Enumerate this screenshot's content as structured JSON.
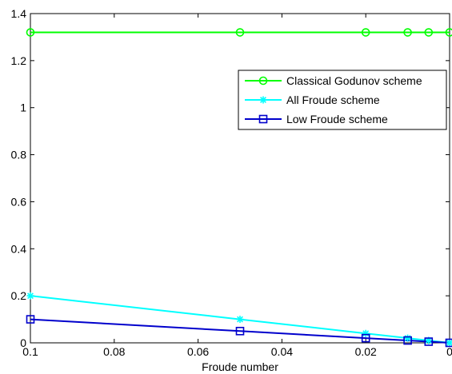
{
  "chart_data": {
    "type": "line",
    "title": "",
    "xlabel": "Froude number",
    "ylabel": "",
    "x_reversed": true,
    "xlim": [
      0,
      0.1
    ],
    "ylim": [
      0,
      1.4
    ],
    "x_ticks": [
      0.1,
      0.08,
      0.06,
      0.04,
      0.02,
      0
    ],
    "x_tick_labels": [
      "0.1",
      "0.08",
      "0.06",
      "0.04",
      "0.02",
      "0"
    ],
    "y_ticks": [
      0,
      0.2,
      0.4,
      0.6,
      0.8,
      1,
      1.2,
      1.4
    ],
    "y_tick_labels": [
      "0",
      "0.2",
      "0.4",
      "0.6",
      "0.8",
      "1",
      "1.2",
      "1.4"
    ],
    "grid": false,
    "legend_position": "top-right",
    "series": [
      {
        "name": "Classical Godunov scheme",
        "color": "#00ff00",
        "marker": "circle",
        "x": [
          0.1,
          0.05,
          0.02,
          0.01,
          0.005,
          0
        ],
        "y": [
          1.32,
          1.32,
          1.32,
          1.32,
          1.32,
          1.32
        ]
      },
      {
        "name": "All Froude scheme",
        "color": "#00ffff",
        "marker": "star",
        "x": [
          0.1,
          0.05,
          0.02,
          0.01,
          0.005,
          0
        ],
        "y": [
          0.2,
          0.1,
          0.04,
          0.02,
          0.01,
          0.0
        ]
      },
      {
        "name": "Low Froude scheme",
        "color": "#0000cc",
        "marker": "square",
        "x": [
          0.1,
          0.05,
          0.02,
          0.01,
          0.005,
          0
        ],
        "y": [
          0.1,
          0.05,
          0.02,
          0.01,
          0.005,
          0.0
        ]
      }
    ]
  }
}
